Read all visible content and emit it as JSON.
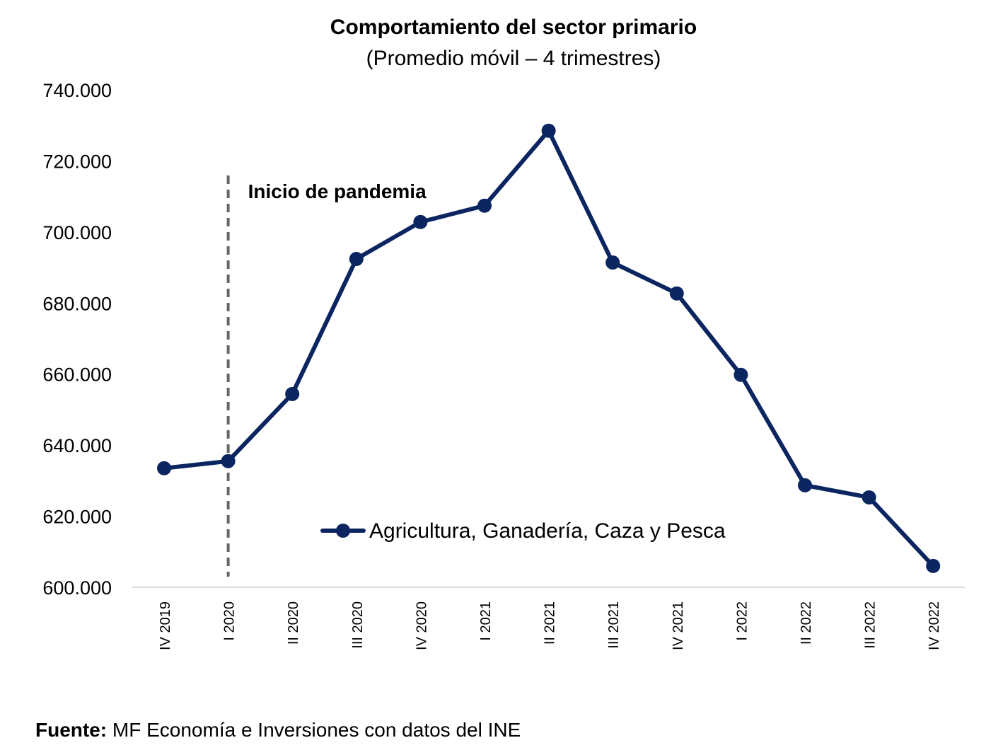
{
  "chart_data": {
    "type": "line",
    "title": "Comportamiento del sector primario",
    "subtitle": "(Promedio móvil – 4 trimestres)",
    "categories": [
      "IV 2019",
      "I 2020",
      "II 2020",
      "III 2020",
      "IV 2020",
      "I 2021",
      "II 2021",
      "III 2021",
      "IV 2021",
      "I 2022",
      "II 2022",
      "III 2022",
      "IV 2022"
    ],
    "series": [
      {
        "name": "Agricultura, Ganadería, Caza y Pesca",
        "color": "#0b2561",
        "values": [
          633.5,
          635.5,
          654.4,
          692.4,
          702.8,
          707.4,
          728.5,
          691.4,
          682.7,
          659.8,
          628.7,
          625.3,
          606.0
        ]
      }
    ],
    "ylim": [
      600,
      740
    ],
    "yticks": [
      "600.000",
      "620.000",
      "640.000",
      "660.000",
      "680.000",
      "700.000",
      "720.000",
      "740.000"
    ],
    "grid": false,
    "legend": "inside-bottom-center",
    "annotation": {
      "label": "Inicio de pandemia",
      "at_category": "I 2020",
      "style": "dashed vertical line",
      "color": "#666666"
    },
    "source_label": "Fuente:",
    "source_text": " MF Economía e Inversiones con datos del INE"
  }
}
